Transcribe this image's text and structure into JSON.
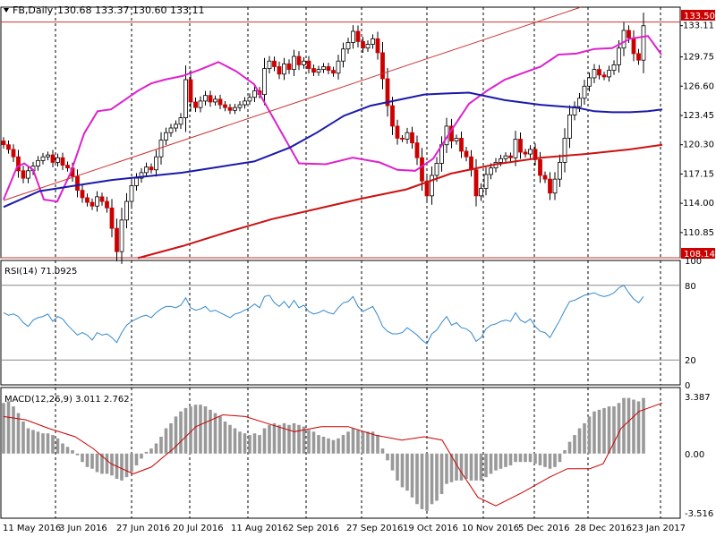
{
  "header": {
    "symbol": "FB,Daily",
    "ohlc": "130.68 133.37 130.60 133.11",
    "current_price_tag": "133.50",
    "support_tag": "108.14"
  },
  "rsi_header": {
    "label": "RSI(14) 71.0925"
  },
  "macd_header": {
    "label": "MACD(12,26,9) 3.011 2.762"
  },
  "colors": {
    "bull_candle": "#ffffff",
    "bear_candle": "#cc0000",
    "candle_outline": "#000000",
    "sma_fast": "#dd22cc",
    "sma_mid": "#1a1aaa",
    "sma_slow": "#cc1111",
    "trendline": "#cc3333",
    "hline": "#cc3333",
    "rsi_line": "#3388cc",
    "macd_hist": "#999999",
    "macd_signal": "#cc0000",
    "price_tag_bg": "#cc0000",
    "price_tag_text": "#ffffff"
  },
  "chart_data": [
    {
      "type": "candlestick",
      "panel": "price",
      "title": "FB,Daily",
      "ylim": [
        108.14,
        135.1
      ],
      "y_ticks": [
        "133.11",
        "129.75",
        "126.60",
        "123.45",
        "120.30",
        "117.15",
        "114.00",
        "110.85"
      ],
      "horizontal_levels": [
        133.5,
        108.14
      ],
      "x_dates": [
        "11 May 2016",
        "3 Jun 2016",
        "27 Jun 2016",
        "20 Jul 2016",
        "11 Aug 2016",
        "2 Sep 2016",
        "27 Sep 2016",
        "19 Oct 2016",
        "10 Nov 2016",
        "5 Dec 2016",
        "28 Dec 2016",
        "23 Jan 2017"
      ],
      "close_series": [
        120.3,
        119.8,
        119.0,
        117.5,
        116.7,
        117.5,
        118.0,
        118.6,
        119.0,
        119.2,
        118.4,
        118.9,
        118.1,
        117.8,
        116.9,
        115.4,
        114.6,
        114.1,
        113.7,
        114.7,
        114.2,
        113.5,
        111.3,
        108.8,
        112.2,
        114.2,
        115.9,
        116.7,
        117.3,
        117.9,
        117.6,
        119.0,
        120.8,
        121.6,
        122.1,
        122.5,
        123.2,
        127.3,
        124.9,
        124.3,
        125.0,
        125.6,
        124.9,
        125.2,
        124.6,
        124.3,
        124.0,
        124.3,
        124.6,
        125.0,
        125.4,
        126.1,
        125.7,
        128.5,
        129.3,
        128.7,
        127.9,
        129.0,
        128.4,
        129.8,
        128.9,
        129.3,
        128.5,
        128.1,
        128.4,
        128.7,
        128.3,
        128.0,
        129.3,
        130.6,
        131.3,
        132.5,
        131.4,
        130.7,
        131.1,
        131.7,
        130.2,
        127.4,
        124.5,
        122.3,
        121.0,
        120.9,
        121.6,
        120.5,
        118.9,
        116.4,
        114.8,
        117.0,
        118.3,
        120.3,
        122.3,
        120.7,
        121.0,
        119.6,
        119.0,
        117.6,
        114.8,
        115.6,
        117.1,
        117.8,
        118.4,
        118.8,
        119.1,
        118.9,
        120.9,
        119.5,
        119.3,
        119.8,
        118.7,
        117.0,
        116.6,
        115.1,
        116.6,
        118.4,
        121.0,
        123.5,
        124.4,
        125.3,
        126.6,
        127.5,
        128.4,
        127.8,
        127.6,
        128.3,
        128.9,
        130.7,
        132.6,
        131.8,
        130.1,
        129.4,
        133.1
      ],
      "series": [
        {
          "name": "SMA fast",
          "color": "#dd22cc",
          "points": [
            [
              0,
              114.4
            ],
            [
              15,
              117.9
            ],
            [
              23,
              118.3
            ],
            [
              33,
              117.6
            ],
            [
              45,
              114.4
            ],
            [
              60,
              114.2
            ],
            [
              75,
              117.3
            ],
            [
              90,
              121.5
            ],
            [
              105,
              123.9
            ],
            [
              120,
              124.1
            ],
            [
              135,
              125.1
            ],
            [
              150,
              126.1
            ],
            [
              165,
              126.9
            ],
            [
              180,
              127.3
            ],
            [
              200,
              127.7
            ],
            [
              220,
              128.4
            ],
            [
              240,
              129.2
            ],
            [
              260,
              128.2
            ],
            [
              280,
              126.8
            ],
            [
              300,
              123.4
            ],
            [
              330,
              118.3
            ],
            [
              360,
              118.2
            ],
            [
              390,
              118.9
            ],
            [
              420,
              118.4
            ],
            [
              440,
              117.6
            ],
            [
              460,
              117.5
            ],
            [
              480,
              118.8
            ],
            [
              500,
              121.8
            ],
            [
              520,
              124.7
            ],
            [
              540,
              126.1
            ],
            [
              560,
              127.3
            ],
            [
              580,
              128.0
            ],
            [
              600,
              128.7
            ],
            [
              620,
              130.0
            ],
            [
              640,
              130.1
            ],
            [
              660,
              130.6
            ],
            [
              680,
              130.7
            ],
            [
              700,
              131.7
            ],
            [
              720,
              132.0
            ],
            [
              735,
              130.0
            ]
          ]
        },
        {
          "name": "SMA mid",
          "color": "#1a1aaa",
          "points": [
            [
              0,
              113.6
            ],
            [
              40,
              115.3
            ],
            [
              80,
              115.9
            ],
            [
              120,
              116.5
            ],
            [
              160,
              116.9
            ],
            [
              200,
              117.3
            ],
            [
              240,
              117.9
            ],
            [
              280,
              118.5
            ],
            [
              320,
              120.0
            ],
            [
              350,
              121.6
            ],
            [
              380,
              123.4
            ],
            [
              410,
              124.5
            ],
            [
              440,
              125.1
            ],
            [
              470,
              125.7
            ],
            [
              490,
              125.8
            ],
            [
              520,
              125.9
            ],
            [
              560,
              125.1
            ],
            [
              600,
              124.6
            ],
            [
              640,
              124.3
            ],
            [
              660,
              123.9
            ],
            [
              680,
              123.8
            ],
            [
              700,
              123.8
            ],
            [
              720,
              123.9
            ],
            [
              736,
              124.1
            ]
          ]
        },
        {
          "name": "SMA slow",
          "color": "#cc1111",
          "points": [
            [
              150,
              108.1
            ],
            [
              200,
              109.4
            ],
            [
              250,
              110.9
            ],
            [
              300,
              112.3
            ],
            [
              350,
              113.4
            ],
            [
              400,
              114.5
            ],
            [
              450,
              115.5
            ],
            [
              500,
              117.2
            ],
            [
              550,
              118.2
            ],
            [
              600,
              118.9
            ],
            [
              650,
              119.3
            ],
            [
              700,
              119.8
            ],
            [
              736,
              120.3
            ]
          ]
        },
        {
          "name": "trendline",
          "color": "#cc3333",
          "points": [
            [
              0,
              114.3
            ],
            [
              645,
              135.1
            ]
          ]
        }
      ]
    },
    {
      "type": "line",
      "panel": "rsi",
      "title": "RSI(14) 71.0925",
      "ylim": [
        0,
        100
      ],
      "y_ticks": [
        "100",
        "80",
        "20",
        "0"
      ],
      "levels": [
        80,
        20
      ],
      "series": [
        {
          "name": "RSI(14)",
          "color": "#3388cc",
          "values": [
            58,
            56,
            57,
            55,
            50,
            47,
            52,
            54,
            55,
            57,
            51,
            55,
            53,
            48,
            44,
            40,
            42,
            40,
            36,
            42,
            40,
            41,
            38,
            34,
            42,
            48,
            51,
            53,
            55,
            56,
            54,
            58,
            61,
            63,
            63,
            62,
            64,
            70,
            62,
            60,
            61,
            63,
            59,
            60,
            58,
            56,
            54,
            57,
            58,
            60,
            62,
            65,
            62,
            71,
            72,
            66,
            63,
            67,
            62,
            68,
            62,
            64,
            59,
            57,
            58,
            60,
            58,
            57,
            62,
            66,
            67,
            71,
            63,
            59,
            61,
            63,
            56,
            47,
            43,
            41,
            41,
            42,
            46,
            43,
            40,
            36,
            33,
            41,
            44,
            50,
            55,
            48,
            50,
            46,
            45,
            42,
            35,
            38,
            45,
            48,
            49,
            51,
            52,
            51,
            58,
            52,
            50,
            53,
            47,
            43,
            42,
            38,
            45,
            52,
            60,
            67,
            68,
            70,
            72,
            73,
            74,
            72,
            71,
            72,
            74,
            78,
            80,
            74,
            69,
            66,
            71
          ]
        }
      ]
    },
    {
      "type": "bar",
      "panel": "macd",
      "title": "MACD(12,26,9) 3.011 2.762",
      "ylim": [
        -3.516,
        3.387
      ],
      "y_ticks": [
        "3.387",
        "0.00",
        "-3.516"
      ],
      "histogram": [
        3.0,
        3.1,
        2.8,
        2.4,
        1.9,
        1.5,
        1.4,
        1.3,
        1.2,
        1.2,
        1.1,
        0.9,
        0.6,
        0.4,
        0.2,
        -0.1,
        -0.5,
        -0.8,
        -0.9,
        -1.1,
        -1.2,
        -1.2,
        -1.3,
        -1.5,
        -1.6,
        -1.4,
        -1.1,
        -0.7,
        -0.3,
        0.1,
        0.3,
        0.6,
        1.0,
        1.5,
        1.8,
        2.2,
        2.5,
        2.7,
        2.8,
        2.9,
        2.9,
        2.8,
        2.6,
        2.4,
        2.2,
        1.9,
        1.7,
        1.5,
        1.3,
        1.2,
        1.1,
        1.2,
        1.1,
        1.5,
        1.7,
        1.8,
        1.7,
        1.8,
        1.7,
        1.8,
        1.7,
        1.6,
        1.4,
        1.3,
        1.1,
        1.0,
        0.9,
        0.8,
        0.9,
        1.1,
        1.3,
        1.5,
        1.4,
        1.3,
        1.3,
        1.3,
        1.1,
        0.3,
        -0.4,
        -1.0,
        -1.6,
        -2.0,
        -2.2,
        -2.6,
        -3.0,
        -3.3,
        -3.4,
        -3.0,
        -2.8,
        -2.4,
        -1.8,
        -1.7,
        -1.6,
        -1.6,
        -1.5,
        -1.6,
        -1.6,
        -1.6,
        -1.4,
        -1.2,
        -1.0,
        -0.9,
        -0.8,
        -0.7,
        -0.5,
        -0.5,
        -0.5,
        -0.5,
        -0.6,
        -0.7,
        -0.8,
        -0.9,
        -0.8,
        -0.5,
        0.2,
        0.7,
        1.1,
        1.5,
        1.8,
        2.2,
        2.5,
        2.6,
        2.7,
        2.8,
        2.8,
        3.0,
        3.3,
        3.3,
        3.2,
        3.1,
        3.3
      ],
      "series": [
        {
          "name": "signal",
          "color": "#cc0000",
          "points": [
            [
              0,
              2.2
            ],
            [
              25,
              2.0
            ],
            [
              50,
              1.5
            ],
            [
              80,
              1.0
            ],
            [
              100,
              0.3
            ],
            [
              120,
              -0.6
            ],
            [
              145,
              -1.2
            ],
            [
              165,
              -0.8
            ],
            [
              190,
              0.3
            ],
            [
              215,
              1.6
            ],
            [
              245,
              2.3
            ],
            [
              270,
              2.2
            ],
            [
              300,
              1.7
            ],
            [
              325,
              1.3
            ],
            [
              355,
              1.6
            ],
            [
              385,
              1.6
            ],
            [
              415,
              1.1
            ],
            [
              445,
              0.8
            ],
            [
              470,
              1.0
            ],
            [
              490,
              0.8
            ],
            [
              510,
              -1.0
            ],
            [
              530,
              -2.6
            ],
            [
              550,
              -3.1
            ],
            [
              580,
              -2.3
            ],
            [
              610,
              -1.4
            ],
            [
              630,
              -0.9
            ],
            [
              655,
              -0.9
            ],
            [
              670,
              -0.6
            ],
            [
              690,
              1.5
            ],
            [
              710,
              2.5
            ],
            [
              736,
              3.0
            ]
          ]
        }
      ]
    }
  ]
}
